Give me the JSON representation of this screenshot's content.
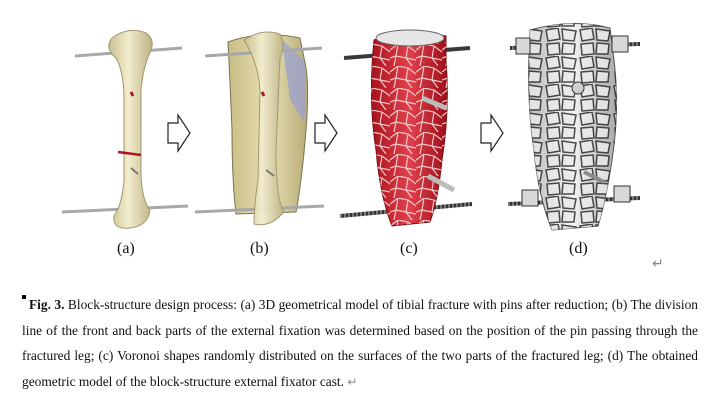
{
  "figure": {
    "panel_labels": [
      "(a)",
      "(b)",
      "(c)",
      "(d)"
    ],
    "arrow_count": 3,
    "colors": {
      "bone": "#e7dfb4",
      "shell": "#d9cf95",
      "voronoi_red": "#c81e2a",
      "cast_gray": "#dcdcdc",
      "pin": "#a8a8a8"
    }
  },
  "caption": {
    "label": "Fig. 3.",
    "text": " Block-structure design process: (a) 3D geometrical model of tibial fracture with pins after reduction; (b) The division line of the front and back parts of the external fixation was determined based on the position of the pin passing through the fractured leg; (c) Voronoi shapes randomly distributed on the surfaces of the two parts of the fractured leg; (d) The obtained geometric model of the block-structure external fixator cast.",
    "return_mark": "↵"
  },
  "figure_return_mark": "↵"
}
